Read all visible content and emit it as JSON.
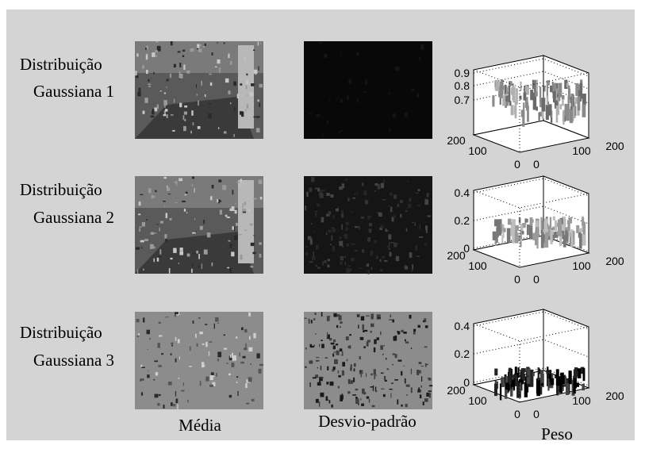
{
  "rows": [
    {
      "label": [
        "Distribuição",
        "Gaussiana 1"
      ],
      "plot": {
        "zticks": [
          0.9,
          0.8,
          0.7
        ],
        "yticks": [
          200,
          100,
          0
        ],
        "xticks": [
          0,
          100,
          200
        ]
      }
    },
    {
      "label": [
        "Distribuição",
        "Gaussiana 2"
      ],
      "plot": {
        "zticks": [
          0.4,
          0.2,
          0
        ],
        "yticks": [
          200,
          100,
          0
        ],
        "xticks": [
          0,
          100,
          200
        ]
      }
    },
    {
      "label": [
        "Distribuição",
        "Gaussiana 3"
      ],
      "plot": {
        "zticks": [
          0.4,
          0.2,
          0
        ],
        "yticks": [
          200,
          100,
          0
        ],
        "xticks": [
          0,
          100,
          200
        ]
      }
    }
  ],
  "columns": [
    "Média",
    "Desvio-padrão",
    "Peso"
  ]
}
